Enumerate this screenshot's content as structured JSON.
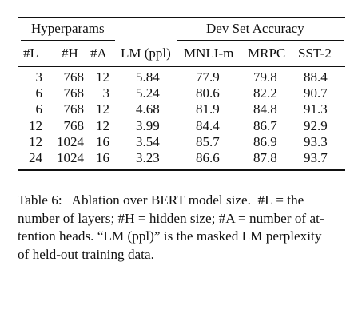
{
  "table": {
    "group_headers": {
      "hyperparams": "Hyperparams",
      "dev_set_accuracy": "Dev Set Accuracy"
    },
    "column_headers": [
      "#L",
      "#H",
      "#A",
      "LM (ppl)",
      "MNLI-m",
      "MRPC",
      "SST-2"
    ],
    "rows": [
      [
        "3",
        "768",
        "12",
        "5.84",
        "77.9",
        "79.8",
        "88.4"
      ],
      [
        "6",
        "768",
        "3",
        "5.24",
        "80.6",
        "82.2",
        "90.7"
      ],
      [
        "6",
        "768",
        "12",
        "4.68",
        "81.9",
        "84.8",
        "91.3"
      ],
      [
        "12",
        "768",
        "12",
        "3.99",
        "84.4",
        "86.7",
        "92.9"
      ],
      [
        "12",
        "1024",
        "16",
        "3.54",
        "85.7",
        "86.9",
        "93.3"
      ],
      [
        "24",
        "1024",
        "16",
        "3.23",
        "86.6",
        "87.8",
        "93.7"
      ]
    ]
  },
  "caption": {
    "line1": "Table 6:   Ablation over BERT model size.  #L = the",
    "line2": "number of layers; #H = hidden size; #A = number of at-",
    "line3": "tention heads. “LM (ppl)” is the masked LM perplexity",
    "line4": "of held-out training data."
  }
}
